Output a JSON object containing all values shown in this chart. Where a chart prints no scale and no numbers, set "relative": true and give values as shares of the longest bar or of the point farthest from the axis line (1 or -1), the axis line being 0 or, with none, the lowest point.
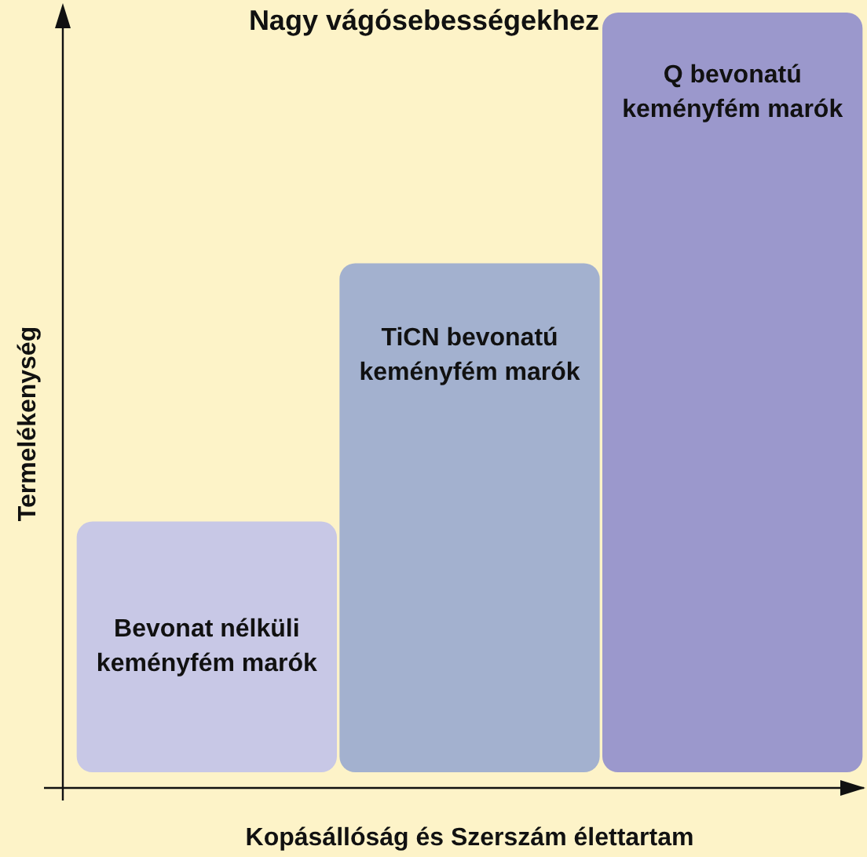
{
  "chart_data": {
    "type": "bar",
    "title": "Nagy vágósebességekhez",
    "xlabel": "Kopásállóság és Szerszám élettartam",
    "ylabel": "Termelékenység",
    "categories": [
      "Bevonat nélküli keményfém marók",
      "TiCN bevonatú keményfém marók",
      "Q bevonatú keményfém marók"
    ],
    "values": [
      0.33,
      0.67,
      1
    ],
    "colors": [
      "#c8c8e6",
      "#a3b1cf",
      "#9b98cc"
    ],
    "relative": true,
    "grid": false,
    "legend": false
  }
}
